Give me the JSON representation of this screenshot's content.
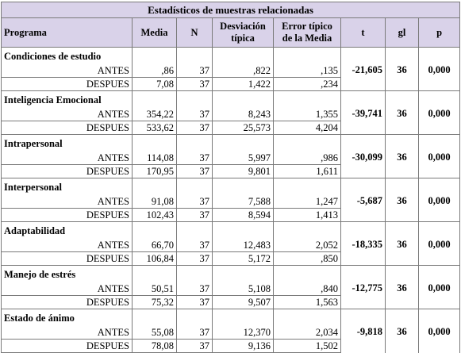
{
  "table": {
    "title": "Estadísticos de muestras relacionadas",
    "headers": {
      "programa": "Programa",
      "media": "Media",
      "n": "N",
      "desviacion_1": "Desviación",
      "desviacion_2": "típica",
      "error_1": "Error típico",
      "error_2": "de la Media",
      "t": "t",
      "gl": "gl",
      "p": "p"
    },
    "groups": [
      {
        "name": "Condiciones de estudio",
        "antes": {
          "label": "ANTES",
          "media": ",86",
          "n": "37",
          "desv": ",822",
          "error": ",135"
        },
        "despues": {
          "label": "DESPUES",
          "media": "7,08",
          "n": "37",
          "desv": "1,422",
          "error": ",234"
        },
        "t": "-21,605",
        "gl": "36",
        "p": "0,000"
      },
      {
        "name": "Inteligencia Emocional",
        "antes": {
          "label": "ANTES",
          "media": "354,22",
          "n": "37",
          "desv": "8,243",
          "error": "1,355"
        },
        "despues": {
          "label": "DESPUES",
          "media": "533,62",
          "n": "37",
          "desv": "25,573",
          "error": "4,204"
        },
        "t": "-39,741",
        "gl": "36",
        "p": "0,000"
      },
      {
        "name": "Intrapersonal",
        "antes": {
          "label": "ANTES",
          "media": "114,08",
          "n": "37",
          "desv": "5,997",
          "error": ",986"
        },
        "despues": {
          "label": "DESPUES",
          "media": "170,95",
          "n": "37",
          "desv": "9,801",
          "error": "1,611"
        },
        "t": "-30,099",
        "gl": "36",
        "p": "0,000"
      },
      {
        "name": "Interpersonal",
        "antes": {
          "label": "ANTES",
          "media": "91,08",
          "n": "37",
          "desv": "7,588",
          "error": "1,247"
        },
        "despues": {
          "label": "DESPUES",
          "media": "102,43",
          "n": "37",
          "desv": "8,594",
          "error": "1,413"
        },
        "t": "-5,687",
        "gl": "36",
        "p": "0,000"
      },
      {
        "name": "Adaptabilidad",
        "antes": {
          "label": "ANTES",
          "media": "66,70",
          "n": "37",
          "desv": "12,483",
          "error": "2,052"
        },
        "despues": {
          "label": "DESPUES",
          "media": "106,84",
          "n": "37",
          "desv": "5,172",
          "error": ",850"
        },
        "t": "-18,335",
        "gl": "36",
        "p": "0,000"
      },
      {
        "name": "Manejo de estrés",
        "antes": {
          "label": "ANTES",
          "media": "50,51",
          "n": "37",
          "desv": "5,108",
          "error": ",840"
        },
        "despues": {
          "label": "DESPUES",
          "media": "75,32",
          "n": "37",
          "desv": "9,507",
          "error": "1,563"
        },
        "t": "-12,775",
        "gl": "36",
        "p": "0,000"
      },
      {
        "name": "Estado de ánimo",
        "antes": {
          "label": "ANTES",
          "media": "55,08",
          "n": "37",
          "desv": "12,370",
          "error": "2,034"
        },
        "despues": {
          "label": "DESPUES",
          "media": "78,08",
          "n": "37",
          "desv": "9,136",
          "error": "1,502"
        },
        "t": "-9,818",
        "gl": "36",
        "p": "0,000"
      }
    ]
  }
}
